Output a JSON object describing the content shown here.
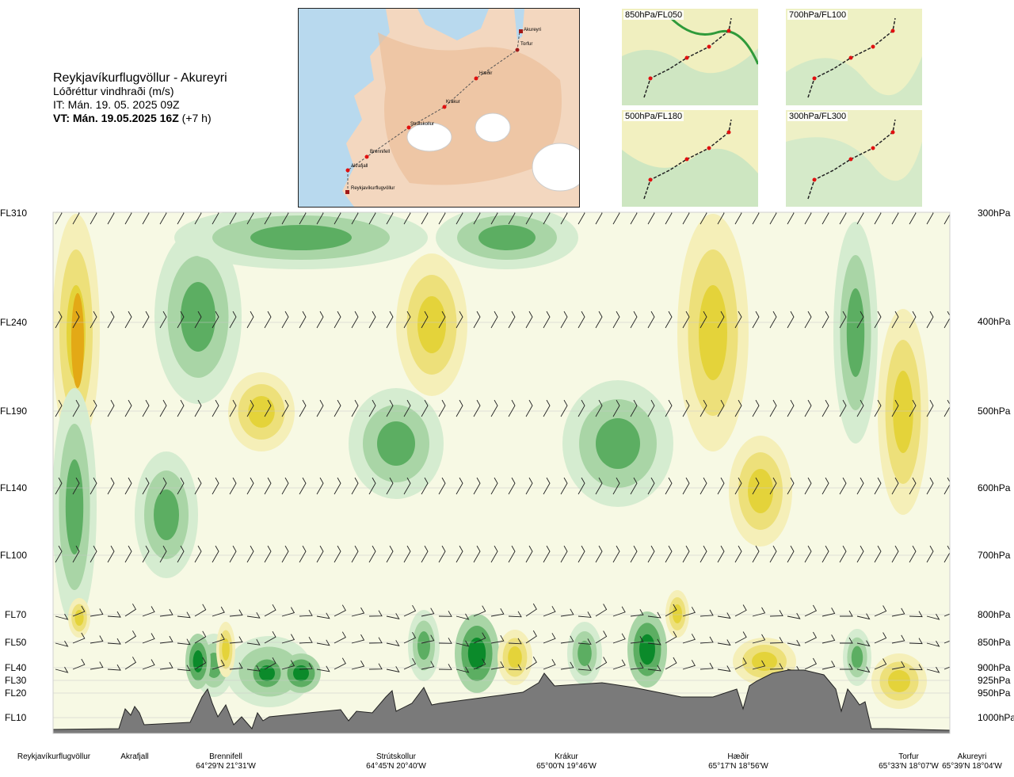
{
  "title": {
    "route": "Reykjavíkurflugvöllur - Akureyri",
    "subtitle": "Lóðréttur vindhraði (m/s)",
    "it": "IT: Mán. 19. 05. 2025 09Z",
    "vt": "VT: Mán. 19.05.2025 16Z",
    "vt_offset": "(+7 h)"
  },
  "map": {
    "waypoints": [
      "Akureyri",
      "Torfur",
      "Hæðir",
      "Krákur",
      "Strútskollur",
      "Brennifell",
      "Akrafjall",
      "Reykjavíkurflugvöllur"
    ]
  },
  "thumbnails": [
    {
      "label": "850hPa/FL050"
    },
    {
      "label": "700hPa/FL100"
    },
    {
      "label": "500hPa/FL180"
    },
    {
      "label": "300hPa/FL300"
    }
  ],
  "levels": {
    "flight_levels": [
      "FL310",
      "FL240",
      "FL190",
      "FL140",
      "FL100",
      "FL70",
      "FL50",
      "FL40",
      "FL30",
      "FL20",
      "FL10"
    ],
    "pressure": [
      "300hPa",
      "400hPa",
      "500hPa",
      "600hPa",
      "700hPa",
      "800hPa",
      "850hPa",
      "900hPa",
      "925hPa",
      "950hPa",
      "1000hPa"
    ]
  },
  "stations": [
    {
      "name": "Reykjavíkurflugvöllur",
      "coord": ""
    },
    {
      "name": "Akrafjall",
      "coord": ""
    },
    {
      "name": "Brennifell",
      "coord": "64°29'N 21°31'W"
    },
    {
      "name": "Strútskollur",
      "coord": "64°45'N 20°40'W"
    },
    {
      "name": "Krákur",
      "coord": "65°00'N 19°46'W"
    },
    {
      "name": "Hæðir",
      "coord": "65°17'N 18°56'W"
    },
    {
      "name": "Torfur",
      "coord": "65°33'N 18°07'W"
    },
    {
      "name": "Akureyri",
      "coord": "65°39'N 18°04'W"
    }
  ],
  "colors": {
    "down_strong": "#0b8a2a",
    "down_mid": "#5cae62",
    "down_weak": "#a9d5a6",
    "down_faint": "#d5ecd0",
    "neutral": "#f7f9e4",
    "up_faint": "#f5efb8",
    "up_weak": "#ede07a",
    "up_mid": "#e4d33a",
    "up_strong": "#e3a916",
    "terrain": "#7a7a7a"
  },
  "chart_data": {
    "type": "heatmap",
    "title": "Lóðréttur vindhraði (m/s)",
    "y_levels_hPa": [
      300,
      400,
      500,
      600,
      700,
      800,
      850,
      900,
      925,
      950,
      1000
    ],
    "y_flight_levels": [
      "FL310",
      "FL240",
      "FL190",
      "FL140",
      "FL100",
      "FL70",
      "FL50",
      "FL40",
      "FL30",
      "FL20",
      "FL10"
    ],
    "x_stations": [
      "Reykjavíkurflugvöllur",
      "Akrafjall",
      "Brennifell",
      "Strútskollur",
      "Krákur",
      "Hæðir",
      "Torfur",
      "Akureyri"
    ],
    "legend": "none",
    "grid": true
  }
}
